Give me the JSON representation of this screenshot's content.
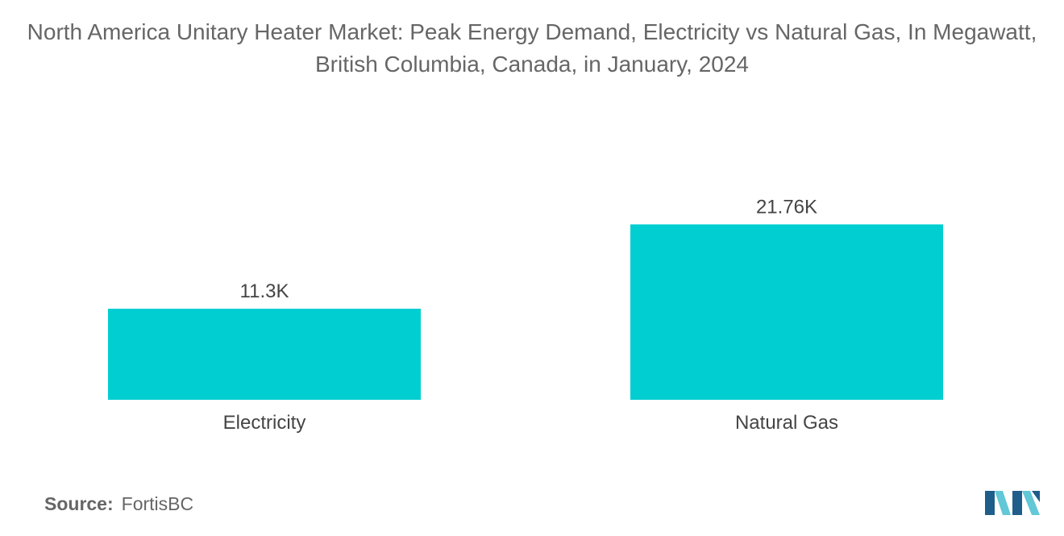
{
  "title": "North America Unitary Heater Market: Peak Energy Demand, Electricity vs Natural Gas, In Megawatt, British Columbia, Canada, in January, 2024",
  "source": {
    "label": "Source:",
    "value": "FortisBC"
  },
  "logo_icon": "mordor-intelligence-logo-icon",
  "colors": {
    "bar": "#00CED1",
    "text": "#666666",
    "value_label": "#444444",
    "logo_light": "#62C7D6",
    "logo_dark": "#1F5D8A"
  },
  "chart_data": {
    "type": "bar",
    "categories": [
      "Electricity",
      "Natural Gas"
    ],
    "values": [
      11300,
      21760
    ],
    "value_labels": [
      "11.3K",
      "21.76K"
    ],
    "title": "North America Unitary Heater Market: Peak Energy Demand, Electricity vs Natural Gas, In Megawatt, British Columbia, Canada, in January, 2024",
    "xlabel": "",
    "ylabel": "",
    "ylim": [
      0,
      40000
    ],
    "grid": false,
    "legend": "none"
  }
}
